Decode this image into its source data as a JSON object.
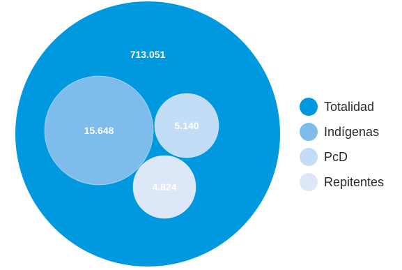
{
  "chart_data": {
    "type": "bubble",
    "title": "",
    "series": [
      {
        "name": "Totalidad",
        "value": 713051,
        "label": "713.051",
        "color": "#0098DE"
      },
      {
        "name": "Indígenas",
        "value": 15648,
        "label": "15.648",
        "color": "#7DBCEB"
      },
      {
        "name": "PcD",
        "value": 5140,
        "label": "5.140",
        "color": "#C3DDF6"
      },
      {
        "name": "Repitentes",
        "value": 4824,
        "label": "4.824",
        "color": "#DCE8F8"
      }
    ],
    "legend_position": "right"
  }
}
